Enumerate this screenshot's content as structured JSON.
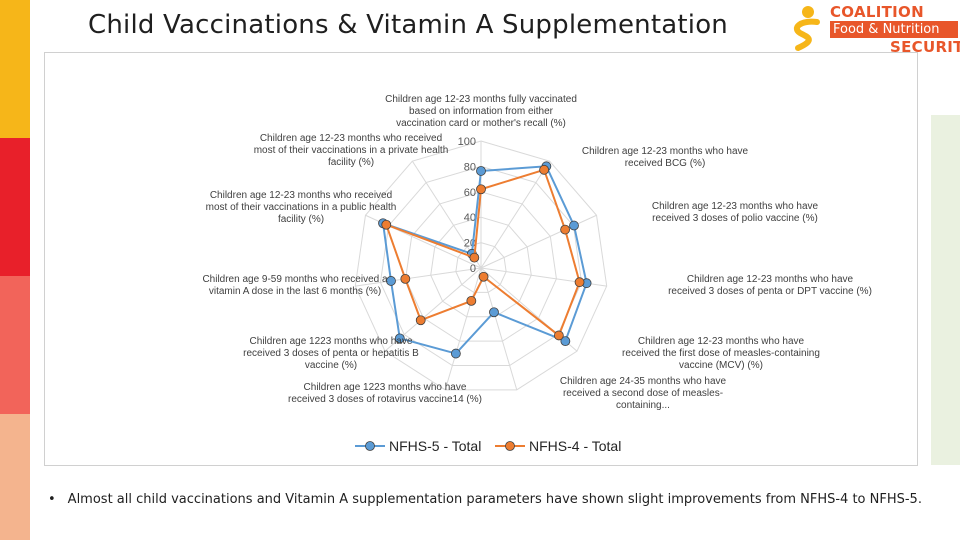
{
  "slide": {
    "title": "Child Vaccinations & Vitamin A Supplementation",
    "bullet": "Almost all child vaccinations and Vitamin A supplementation parameters have shown slight improvements from NFHS-4 to NFHS-5.",
    "bar_colors": [
      "#f6b619",
      "#e8202a",
      "#f2645a",
      "#f4b48e"
    ],
    "side_panel_color": "#eaf1e0"
  },
  "logo": {
    "line1": "COALITION",
    "line2": "Food & Nutrition",
    "line3": "SECURITY",
    "colors": [
      "#f6b619",
      "#e8562a"
    ]
  },
  "chart_data": {
    "type": "radar",
    "categories": [
      "Children age 12-23 months fully vaccinated based on information from either vaccination card or mother's recall (%)",
      "Children age 12-23 months who have received BCG (%)",
      "Children age 12-23 months who have received 3 doses of polio vaccine (%)",
      "Children age 12-23 months who have received 3 doses of penta or DPT vaccine (%)",
      "Children age 12-23 months who have received the first dose of measles-containing vaccine (MCV) (%)",
      "Children age 24-35 months who have received a second dose of measles-containing...",
      "Children age 1223 months who have received 3 doses of rotavirus vaccine14 (%)",
      "Children age 1223 months who have received 3 doses of penta or hepatitis B vaccine (%)",
      "Children age 9-59 months who received a vitamin A dose in the last 6 months (%)",
      "Children age 12-23 months who received most of their vaccinations in a public health facility (%)",
      "Children age 12-23 months who received most of their vaccinations in a private health facility (%)"
    ],
    "label_lines": [
      [
        "Children age 12-23 months fully vaccinated",
        "based on information from either",
        "vaccination card or mother's recall (%)"
      ],
      [
        "Children age 12-23 months who have",
        "received BCG (%)"
      ],
      [
        "Children age 12-23 months who have",
        "received 3 doses of polio vaccine (%)"
      ],
      [
        "Children age 12-23 months who have",
        "received 3 doses of penta or DPT vaccine (%)"
      ],
      [
        "Children age 12-23 months who have",
        "received the first dose of measles-containing",
        "vaccine (MCV) (%)"
      ],
      [
        "Children age 24-35 months who have",
        "received a second dose of measles-",
        "containing..."
      ],
      [
        "Children age 1223 months who have",
        "received 3 doses of rotavirus vaccine14 (%)"
      ],
      [
        "Children age 1223 months who have",
        "received 3 doses of penta or hepatitis B",
        "vaccine (%)"
      ],
      [
        "Children age 9-59 months who received a",
        "vitamin A dose in the last 6 months (%)"
      ],
      [
        "Children age 12-23 months who received",
        "most of their vaccinations in a public health",
        "facility (%)"
      ],
      [
        "Children age 12-23 months who received",
        "most of their vaccinations in a private health",
        "facility (%)"
      ]
    ],
    "series": [
      {
        "name": "NFHS-5 - Total",
        "color": "#5b9bd5",
        "values": [
          76.4,
          95.2,
          80.5,
          84.0,
          87.9,
          36.3,
          70.2,
          84.6,
          71.6,
          84.8,
          13.3
        ]
      },
      {
        "name": "NFHS-4 - Total",
        "color": "#ed7d31",
        "values": [
          62.0,
          91.9,
          72.8,
          78.4,
          81.1,
          7.2,
          27.0,
          62.8,
          60.2,
          82.0,
          9.7
        ]
      }
    ],
    "ticks": [
      0,
      20,
      40,
      60,
      80,
      100
    ],
    "rlim": [
      0,
      100
    ],
    "grid": true,
    "legend_position": "bottom"
  }
}
